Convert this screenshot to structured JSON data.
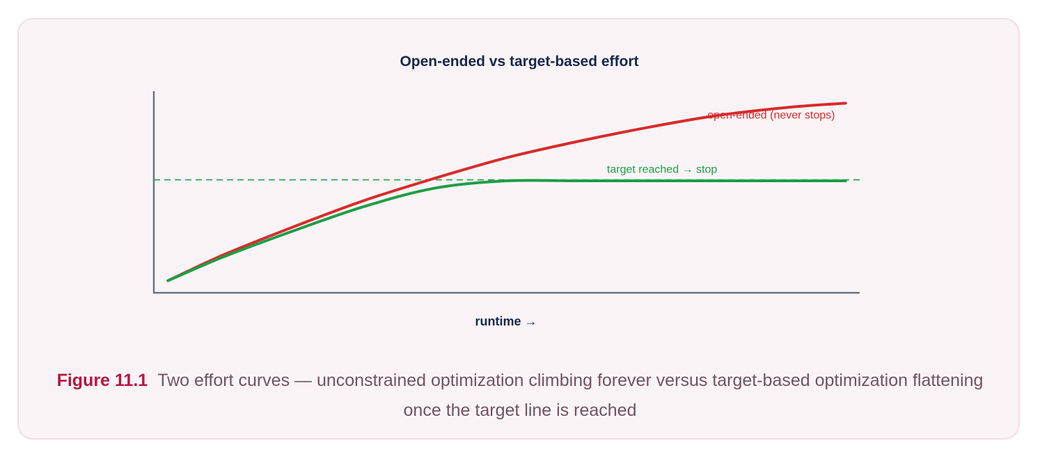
{
  "figure": {
    "label": "Figure 11.1",
    "caption": "Two effort curves — unconstrained optimization climbing forever versus target-based optimization flattening once the target line is reached"
  },
  "chart_data": {
    "type": "line",
    "title": "Open-ended vs target-based effort",
    "xlabel": "runtime →",
    "ylabel": "",
    "xlim": [
      0,
      1
    ],
    "ylim": [
      0,
      1
    ],
    "grid": false,
    "target_level": 0.56,
    "target_label": "target reached → stop",
    "series": [
      {
        "name": "open-ended (never stops)",
        "color": "#d92b2b",
        "x": [
          0.02,
          0.1,
          0.2,
          0.3,
          0.4,
          0.5,
          0.6,
          0.7,
          0.8,
          0.9,
          0.98
        ],
        "y": [
          0.06,
          0.19,
          0.33,
          0.46,
          0.57,
          0.67,
          0.75,
          0.82,
          0.88,
          0.92,
          0.94
        ]
      },
      {
        "name": "",
        "color": "#1e9e46",
        "x": [
          0.02,
          0.1,
          0.2,
          0.3,
          0.4,
          0.5,
          0.6,
          0.7,
          0.8,
          0.9,
          0.98
        ],
        "y": [
          0.06,
          0.18,
          0.31,
          0.43,
          0.52,
          0.555,
          0.555,
          0.555,
          0.555,
          0.555,
          0.555
        ]
      }
    ]
  }
}
